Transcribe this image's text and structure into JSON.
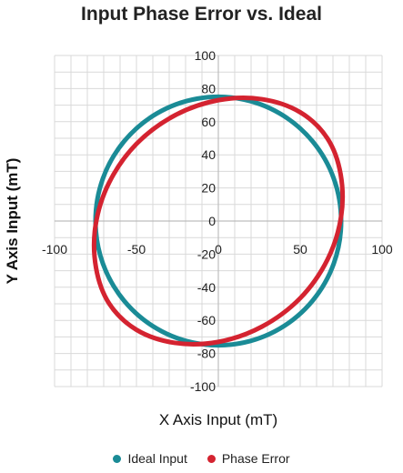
{
  "chart_data": {
    "type": "line",
    "title": "Input Phase Error vs. Ideal",
    "xlabel": "X Axis Input (mT)",
    "ylabel": "Y Axis Input (mT)",
    "xlim": [
      -100,
      100
    ],
    "ylim": [
      -100,
      100
    ],
    "x_ticks": [
      "-100",
      "-50",
      "0",
      "50",
      "100"
    ],
    "y_ticks": [
      "100",
      "80",
      "60",
      "40",
      "20",
      "0",
      "-20",
      "-40",
      "-60",
      "-80",
      "-100"
    ],
    "grid": true,
    "legend_position": "bottom",
    "series": [
      {
        "name": "Ideal Input",
        "color": "#1a8b96",
        "x": [
          75,
          70.5,
          57.5,
          37.5,
          13,
          -13,
          -37.5,
          -57.5,
          -70.5,
          -75,
          -70.5,
          -57.5,
          -37.5,
          -13,
          13,
          37.5,
          57.5,
          70.5,
          75
        ],
        "y": [
          0,
          25.7,
          48.2,
          65,
          73.9,
          73.9,
          65,
          48.2,
          25.7,
          0,
          -25.7,
          -48.2,
          -65,
          -73.9,
          -73.9,
          -65,
          -48.2,
          -25.7,
          0
        ]
      },
      {
        "name": "Phase Error",
        "color": "#d42330",
        "x": [
          75,
          74.7,
          66.7,
          50,
          26.6,
          0,
          -26.6,
          -50,
          -66.7,
          -75,
          -74.7,
          -66.7,
          -50,
          -26.6,
          0,
          26.6,
          50,
          66.7,
          75
        ],
        "y": [
          2.8,
          28.2,
          49.8,
          65.7,
          73.6,
          73,
          63.8,
          46.6,
          23.2,
          -2.8,
          -28.2,
          -49.8,
          -65.7,
          -73.6,
          -73,
          -63.8,
          -46.6,
          -23.2,
          2.8
        ]
      }
    ]
  }
}
